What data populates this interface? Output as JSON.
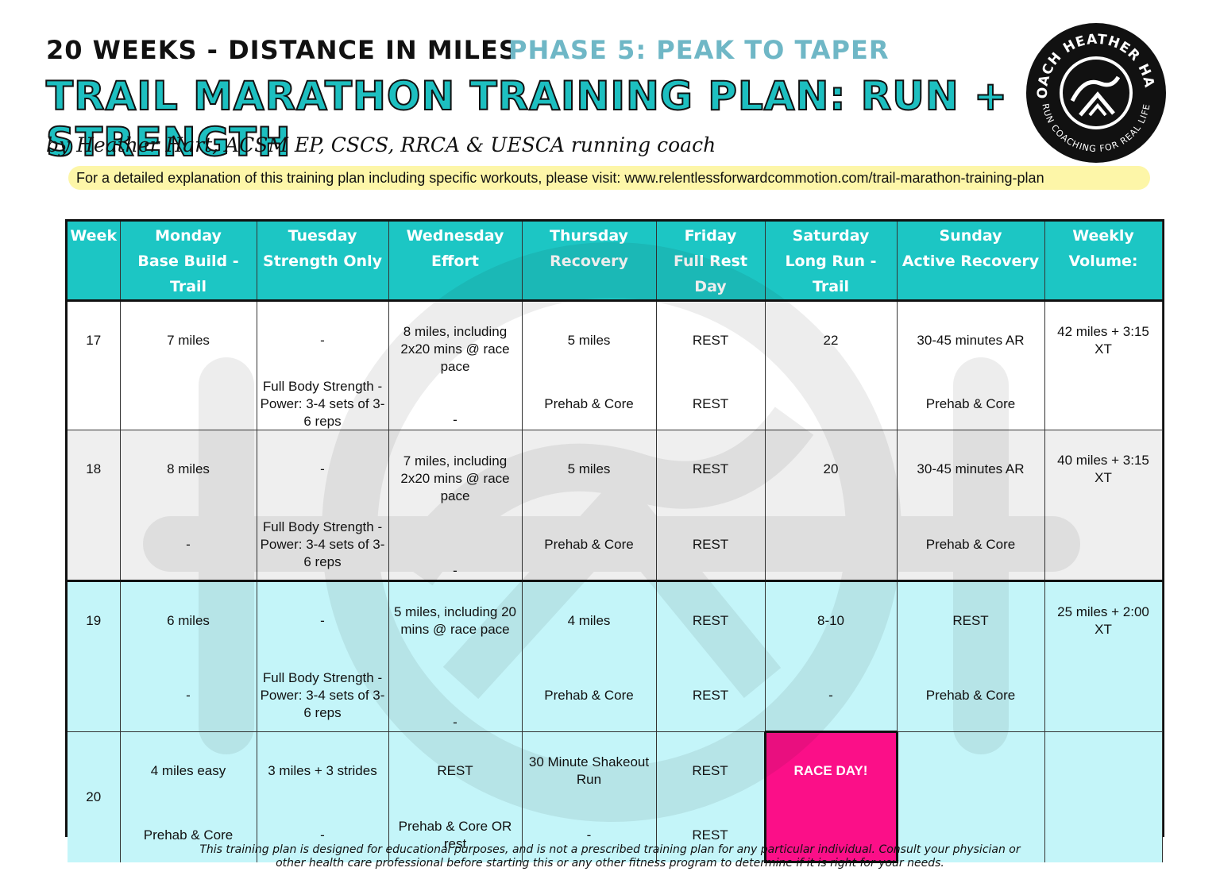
{
  "header": {
    "weeks_label": "20 WEEKS - DISTANCE IN MILES",
    "phase_label": "PHASE 5: PEAK TO TAPER",
    "title": "TRAIL MARATHON TRAINING PLAN: RUN + STRENGTH",
    "byline": "by Heather Hart, ACSM EP, CSCS, RRCA & UESCA running coach",
    "info_note": "For a detailed explanation of this training plan including specific workouts, please visit: www.relentlessforwardcommotion.com/trail-marathon-training-plan"
  },
  "logo": {
    "top_text": "COACH HEATHER HART",
    "bottom_text": "RUN COACHING FOR REAL LIFE"
  },
  "table": {
    "columns": [
      {
        "line1": "Week",
        "line2": ""
      },
      {
        "line1": "Monday",
        "line2": "Base Build - Trail"
      },
      {
        "line1": "Tuesday",
        "line2": "Strength Only"
      },
      {
        "line1": "Wednesday",
        "line2": "Effort"
      },
      {
        "line1": "Thursday",
        "line2": "Recovery"
      },
      {
        "line1": "Friday",
        "line2": "Full Rest Day"
      },
      {
        "line1": "Saturday",
        "line2": "Long Run - Trail"
      },
      {
        "line1": "Sunday",
        "line2": "Active Recovery"
      },
      {
        "line1": "Weekly Volume:",
        "line2": ""
      }
    ],
    "rows": [
      {
        "week": "17",
        "monday": {
          "top": "7 miles",
          "bottom": ""
        },
        "tuesday": {
          "top": "-",
          "bottom": "Full Body Strength - Power: 3-4 sets of 3-6 reps"
        },
        "wednesday": {
          "top": "8 miles, including 2x20 mins @ race pace",
          "bottom": "-"
        },
        "thursday": {
          "top": "5 miles",
          "bottom": "Prehab & Core"
        },
        "friday": {
          "top": "REST",
          "bottom": "REST"
        },
        "saturday": {
          "top": "22",
          "bottom": ""
        },
        "sunday": {
          "top": "30-45 minutes AR",
          "bottom": "Prehab & Core"
        },
        "volume": "42 miles + 3:15 XT"
      },
      {
        "week": "18",
        "monday": {
          "top": "8 miles",
          "bottom": "-"
        },
        "tuesday": {
          "top": "-",
          "bottom": "Full Body Strength - Power: 3-4 sets of 3-6 reps"
        },
        "wednesday": {
          "top": "7 miles, including 2x20 mins @ race pace",
          "bottom": "-"
        },
        "thursday": {
          "top": "5 miles",
          "bottom": "Prehab & Core"
        },
        "friday": {
          "top": "REST",
          "bottom": "REST"
        },
        "saturday": {
          "top": "20",
          "bottom": ""
        },
        "sunday": {
          "top": "30-45 minutes AR",
          "bottom": "Prehab & Core"
        },
        "volume": "40 miles + 3:15 XT"
      },
      {
        "week": "19",
        "monday": {
          "top": "6 miles",
          "bottom": "-"
        },
        "tuesday": {
          "top": "-",
          "bottom": "Full Body Strength - Power: 3-4 sets of 3-6 reps"
        },
        "wednesday": {
          "top": "5 miles, including 20 mins @ race pace",
          "bottom": "-"
        },
        "thursday": {
          "top": "4 miles",
          "bottom": "Prehab & Core"
        },
        "friday": {
          "top": "REST",
          "bottom": "REST"
        },
        "saturday": {
          "top": "8-10",
          "bottom": "-"
        },
        "sunday": {
          "top": "REST",
          "bottom": "Prehab & Core"
        },
        "volume": "25 miles + 2:00 XT"
      },
      {
        "week": "20",
        "monday": {
          "top": "4 miles easy",
          "bottom": "Prehab & Core"
        },
        "tuesday": {
          "top": "3 miles + 3 strides",
          "bottom": "-"
        },
        "wednesday": {
          "top": "REST",
          "bottom": "Prehab & Core OR rest"
        },
        "thursday": {
          "top": "30 Minute Shakeout Run",
          "bottom": "-"
        },
        "friday": {
          "top": "REST",
          "bottom": "REST"
        },
        "saturday": {
          "top": "RACE DAY!",
          "bottom": ""
        },
        "sunday": {
          "top": "",
          "bottom": ""
        },
        "volume": ""
      }
    ]
  },
  "colors": {
    "header_teal": "#1cc6c4",
    "phase_blue": "#6fb7c6",
    "race_pink": "#fb0f88",
    "row_gray": "#efefef",
    "row_aqua": "#c4f5f9",
    "note_yellow": "#fdf6a8"
  },
  "disclaimer": {
    "line1": "This training plan is designed for educational purposes, and is not a prescribed training plan for any particular individual. Consult your physician or",
    "line2": "other health care professional before starting this or any other fitness program to determine if it is right for your needs."
  }
}
